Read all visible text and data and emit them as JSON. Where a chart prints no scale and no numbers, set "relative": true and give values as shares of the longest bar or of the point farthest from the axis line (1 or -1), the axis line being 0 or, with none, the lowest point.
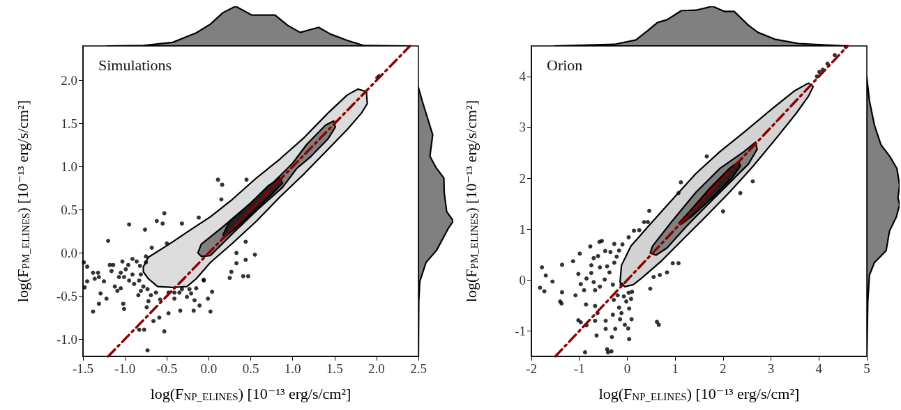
{
  "chart_data": [
    {
      "type": "area",
      "relative": true,
      "xlim": [
        -1.5,
        2.5
      ],
      "series": [
        {
          "color": "#808080",
          "x": [
            -1.21,
            -0.78,
            -0.43,
            -0.15,
            0.02,
            0.17,
            0.32,
            0.51,
            0.79,
            0.94,
            1.09,
            1.31,
            1.45,
            1.65,
            1.85,
            2.39
          ],
          "values": [
            0,
            0.01,
            0.09,
            0.33,
            0.55,
            0.84,
            1.0,
            0.78,
            0.78,
            0.52,
            0.34,
            0.47,
            0.3,
            0.14,
            0.01,
            0
          ]
        }
      ]
    },
    {
      "type": "scatter",
      "xlabel": "log(F$_{NP_ELINES}$) [10⁻¹³ erg/s/cm²]",
      "ylabel": "log(F$_{PM_ELINES}$) [10⁻¹³ erg/s/cm²]",
      "annotations": [
        "Simulations"
      ],
      "xlim": [
        -1.5,
        2.5
      ],
      "ylim": [
        -1.2,
        2.4
      ],
      "xticks": [
        -1.5,
        {
          "value": -1,
          "label": "-1.0"
        },
        -0.5,
        {
          "value": 0,
          "label": "0.0"
        },
        0.5,
        {
          "value": 1,
          "label": "1.0"
        },
        1.5,
        {
          "value": 2,
          "label": "2.0"
        },
        2.5
      ],
      "yticks": [
        {
          "value": -1,
          "label": "-1.0"
        },
        -0.5,
        {
          "value": 0,
          "label": "0.0"
        },
        0.5,
        {
          "value": 1,
          "label": "1.0"
        },
        1.5,
        {
          "value": 2,
          "label": "2.0"
        }
      ],
      "series": [
        {
          "type": "area",
          "color": "#dcdcdc",
          "x": [
            -0.78,
            -0.72,
            -0.49,
            -0.23,
            0.02,
            0.28,
            0.57,
            0.85,
            1.14,
            1.42,
            1.65,
            1.78,
            1.88,
            1.89,
            1.82,
            1.65,
            1.42,
            1.14,
            0.85,
            0.57,
            0.28,
            0.02,
            -0.15,
            -0.26,
            -0.43,
            -0.61,
            -0.72,
            -0.78
          ],
          "values": [
            -0.16,
            -0.05,
            0.09,
            0.26,
            0.42,
            0.62,
            0.87,
            1.09,
            1.34,
            1.62,
            1.83,
            1.9,
            1.87,
            1.73,
            1.62,
            1.43,
            1.2,
            0.92,
            0.65,
            0.37,
            0.11,
            -0.11,
            -0.3,
            -0.39,
            -0.4,
            -0.39,
            -0.3,
            -0.22
          ]
        },
        {
          "type": "area",
          "color": "#808080",
          "x": [
            -0.13,
            -0.09,
            0.14,
            0.42,
            0.71,
            1.0,
            1.17,
            1.39,
            1.49,
            1.51,
            1.42,
            1.22,
            1.05,
            0.88,
            0.59,
            0.31,
            0.02,
            -0.09
          ],
          "values": [
            0.0,
            0.1,
            0.28,
            0.51,
            0.76,
            1.04,
            1.26,
            1.48,
            1.53,
            1.46,
            1.32,
            1.12,
            0.98,
            0.76,
            0.51,
            0.25,
            -0.03,
            -0.04
          ]
        },
        {
          "type": "area",
          "color": "#222222",
          "x": [
            0.17,
            0.25,
            0.48,
            0.71,
            0.85,
            0.88,
            0.77,
            0.54,
            0.31,
            0.19
          ],
          "values": [
            0.21,
            0.37,
            0.56,
            0.78,
            0.87,
            0.81,
            0.7,
            0.48,
            0.28,
            0.18
          ]
        },
        {
          "type": "scatter",
          "color": "#000000",
          "marker": "circle",
          "x": [
            0.11,
            0.16,
            0.15,
            0.45,
            -0.12,
            -0.53,
            -0.62,
            -0.55,
            -0.32,
            -0.95,
            -0.76,
            -1.2,
            -0.5,
            -0.68,
            0.55,
            0.33,
            0.44,
            0.33,
            0.27,
            0.25,
            0.41,
            0.47,
            0.44,
            0.04,
            -0.01,
            0.02,
            -0.11,
            -0.18,
            -0.17,
            -0.26,
            -0.21,
            -0.06,
            -0.15,
            -0.34,
            -0.41,
            -0.48,
            -0.53,
            -0.59,
            -0.66,
            -0.77,
            -0.83,
            -0.73,
            -0.74,
            -0.72,
            -0.81,
            -0.84,
            -1.01,
            -1.02,
            -1.22,
            -1.29,
            -1.31,
            -1.38,
            -1.25,
            -1.36,
            -1.45,
            -1.48,
            -1.45,
            -1.49,
            -1.38,
            -1.32,
            -1.31,
            -1.18,
            -1.14,
            -1.16,
            -1.12,
            -1.09,
            -1.05,
            -1.07,
            -1.03,
            -0.99,
            -0.96,
            -0.91,
            -0.86,
            -0.82,
            -0.91,
            -0.95,
            -0.89,
            -0.83,
            -0.78,
            -0.73,
            -0.75,
            -0.75,
            -0.69,
            -0.63,
            -0.58,
            -0.35,
            -0.32,
            -0.23,
            -0.06,
            2.01,
            2.03,
            -1.01,
            -1.05,
            -0.81,
            -0.48,
            -0.41
          ],
          "values": [
            0.85,
            0.79,
            0.62,
            0.85,
            0.41,
            0.46,
            0.37,
            0.34,
            0.34,
            0.33,
            0.27,
            0.14,
            0.11,
            0.06,
            -0.02,
            0.0,
            -0.08,
            -0.12,
            -0.22,
            -0.29,
            -0.27,
            -0.27,
            0.13,
            -0.45,
            -0.53,
            -0.68,
            -0.61,
            -0.67,
            -0.55,
            -0.51,
            -0.47,
            -0.31,
            -0.41,
            -0.67,
            -0.53,
            -0.7,
            -0.91,
            -0.75,
            -0.79,
            -0.89,
            -0.89,
            -1.13,
            -0.63,
            -0.56,
            -0.44,
            -0.49,
            -0.65,
            -0.59,
            -0.53,
            -0.47,
            -0.59,
            -0.68,
            -0.33,
            -0.3,
            -0.33,
            -0.4,
            -0.16,
            -0.11,
            -0.23,
            -0.23,
            -0.28,
            -0.14,
            -0.14,
            -0.21,
            -0.39,
            -0.44,
            -0.41,
            -0.28,
            -0.1,
            -0.19,
            -0.14,
            -0.07,
            -0.1,
            -0.15,
            -0.25,
            -0.32,
            -0.36,
            -0.32,
            -0.39,
            -0.42,
            -0.11,
            -0.04,
            -0.49,
            -0.46,
            -0.54,
            -0.46,
            -0.42,
            -0.42,
            -0.32,
            2.03,
            2.05,
            -0.28,
            -0.23,
            -0.25,
            -0.46,
            -0.46
          ]
        },
        {
          "type": "line",
          "color": "#8b0000",
          "line_style": "dashed",
          "x": [
            -1.2,
            2.4
          ],
          "values": [
            -1.2,
            2.4
          ]
        }
      ]
    },
    {
      "type": "area",
      "relative": true,
      "orientation": "horizontal",
      "ylim": [
        -1.2,
        2.4
      ],
      "series": [
        {
          "color": "#808080",
          "x": [
            1.92,
            1.76,
            1.37,
            1.12,
            0.98,
            0.87,
            0.7,
            0.48,
            0.37,
            0.28,
            0.03,
            -0.11,
            -0.33,
            -0.56,
            -1.2
          ],
          "values": [
            0,
            0.11,
            0.41,
            0.33,
            0.52,
            0.73,
            0.74,
            0.81,
            1.0,
            0.85,
            0.52,
            0.22,
            0.04,
            0.01,
            0
          ]
        }
      ]
    },
    {
      "type": "area",
      "relative": true,
      "xlim": [
        -2,
        5
      ],
      "series": [
        {
          "color": "#808080",
          "x": [
            -1.52,
            -0.27,
            0.18,
            0.43,
            0.63,
            0.83,
            1.13,
            1.43,
            1.78,
            2.03,
            2.23,
            2.53,
            2.73,
            3.08,
            3.58,
            4.58
          ],
          "values": [
            0,
            0.04,
            0.15,
            0.39,
            0.59,
            0.66,
            0.89,
            0.9,
            1.0,
            0.87,
            0.87,
            0.52,
            0.34,
            0.17,
            0.06,
            0
          ]
        }
      ]
    },
    {
      "type": "scatter",
      "xlabel": "log(F$_{NP_ELINES}$) [10⁻¹³ erg/s/cm²]",
      "ylabel": "log(F$_{PM_ELINES}$) [10⁻¹³ erg/s/cm²]",
      "annotations": [
        "Orion"
      ],
      "xlim": [
        -2,
        5
      ],
      "ylim": [
        -1.5,
        4.6
      ],
      "xticks": [
        -2,
        -1,
        0,
        1,
        2,
        3,
        4,
        5
      ],
      "yticks": [
        -1,
        0,
        1,
        2,
        3,
        4
      ],
      "series": [
        {
          "type": "area",
          "color": "#d3d3d3",
          "x": [
            -0.15,
            -0.12,
            0.08,
            0.48,
            0.93,
            1.43,
            1.93,
            2.43,
            3.03,
            3.48,
            3.78,
            3.88,
            3.78,
            3.53,
            3.13,
            2.63,
            2.13,
            1.63,
            1.13,
            0.73,
            0.33,
            0.13,
            -0.05
          ],
          "values": [
            -0.04,
            0.29,
            0.67,
            1.1,
            1.57,
            2.09,
            2.52,
            2.9,
            3.37,
            3.71,
            3.87,
            3.8,
            3.61,
            3.28,
            2.81,
            2.24,
            1.72,
            1.24,
            0.77,
            0.39,
            0.06,
            -0.09,
            -0.13
          ]
        },
        {
          "type": "area",
          "color": "#808080",
          "x": [
            0.48,
            0.53,
            0.93,
            1.43,
            1.93,
            2.43,
            2.68,
            2.71,
            2.53,
            2.23,
            1.73,
            1.23,
            0.83,
            0.6
          ],
          "values": [
            0.53,
            0.67,
            1.15,
            1.72,
            2.19,
            2.52,
            2.71,
            2.57,
            2.28,
            2.0,
            1.53,
            1.05,
            0.63,
            0.49
          ]
        },
        {
          "type": "area",
          "color": "#222222",
          "x": [
            1.08,
            1.33,
            1.73,
            2.13,
            2.33,
            2.36,
            2.18,
            1.78,
            1.33,
            1.13
          ],
          "values": [
            1.12,
            1.38,
            1.81,
            2.19,
            2.33,
            2.24,
            2.0,
            1.62,
            1.24,
            1.1
          ]
        },
        {
          "type": "scatter",
          "color": "#000000",
          "marker": "circle",
          "x": [
            1.66,
            1.12,
            1.07,
            2.62,
            2.36,
            2.0,
            0.46,
            0.35,
            0.43,
            0.14,
            0.25,
            0.03,
            -0.1,
            -0.27,
            -0.53,
            -0.58,
            -0.77,
            -0.99,
            -1.13,
            -1.36,
            -1.78,
            -1.7,
            -1.56,
            -1.82,
            -1.73,
            -1.36,
            -1.4,
            -1.37,
            -1.08,
            -1.02,
            -0.97,
            -0.85,
            -0.75,
            -0.7,
            -0.61,
            -0.46,
            -0.35,
            -0.75,
            -0.57,
            -0.42,
            -0.47,
            -0.7,
            -0.67,
            -0.57,
            -0.9,
            -0.86,
            -0.67,
            -0.62,
            -0.67,
            -0.45,
            -1.02,
            -0.97,
            -0.85,
            -0.45,
            -0.25,
            -0.32,
            -0.64,
            -0.88,
            -0.42,
            -0.33,
            -0.4,
            0.04,
            -0.05,
            0.02,
            0.09,
            0.04,
            -0.15,
            -0.12,
            -0.3,
            -0.17,
            -0.28,
            -0.2,
            -0.07,
            0.03,
            0.1,
            0.08,
            -0.02,
            -0.17,
            -0.22,
            -0.27,
            -0.37,
            -0.3,
            -0.12,
            0.48,
            0.55,
            0.68,
            0.83,
            0.95,
            1.07,
            0.62,
            0.66,
            4.08,
            4.18,
            3.96,
            4.33,
            4.56,
            4.01
          ],
          "values": [
            2.43,
            1.92,
            1.71,
            1.94,
            1.71,
            1.35,
            1.36,
            1.14,
            1.14,
            0.97,
            0.98,
            0.84,
            0.7,
            0.71,
            0.77,
            0.75,
            0.66,
            0.52,
            0.37,
            0.3,
            0.25,
            0.09,
            -0.03,
            -0.15,
            -0.22,
            -0.24,
            -0.42,
            -0.46,
            -0.3,
            0.12,
            -0.08,
            0.03,
            0.14,
            0.43,
            0.47,
            0.57,
            0.55,
            0.29,
            0.25,
            0.27,
            0.01,
            -0.04,
            -0.2,
            -0.13,
            -0.2,
            -0.48,
            -0.51,
            -0.65,
            -0.8,
            -0.8,
            -0.79,
            -0.83,
            -0.89,
            -0.96,
            -0.96,
            -1.12,
            -1.09,
            -1.42,
            -1.36,
            -1.4,
            -1.42,
            -1.16,
            -0.88,
            -0.95,
            -0.77,
            -0.56,
            -0.77,
            -0.65,
            -0.68,
            -0.54,
            -0.39,
            -0.3,
            -0.32,
            -0.25,
            -0.23,
            -0.37,
            -0.42,
            0.58,
            0.46,
            0.34,
            0.15,
            -0.09,
            -0.09,
            -0.17,
            0.06,
            0.1,
            0.15,
            0.33,
            0.33,
            -0.82,
            -0.88,
            4.13,
            4.25,
            4.0,
            4.42,
            4.58,
            4.09
          ]
        },
        {
          "type": "line",
          "color": "#8b0000",
          "line_style": "dashed",
          "x": [
            -1.5,
            4.6
          ],
          "values": [
            -1.5,
            4.6
          ]
        }
      ]
    },
    {
      "type": "area",
      "relative": true,
      "orientation": "horizontal",
      "ylim": [
        -1.5,
        4.6
      ],
      "series": [
        {
          "color": "#808080",
          "x": [
            3.99,
            3.52,
            3.05,
            2.66,
            2.43,
            2.19,
            1.86,
            1.62,
            1.48,
            1.24,
            0.96,
            0.58,
            0.34,
            0.1,
            -0.42,
            -1.51
          ],
          "values": [
            0,
            0.08,
            0.23,
            0.43,
            0.7,
            0.92,
            1.0,
            0.95,
            1.0,
            0.9,
            0.69,
            0.59,
            0.23,
            0.08,
            0.03,
            0
          ]
        }
      ]
    }
  ]
}
